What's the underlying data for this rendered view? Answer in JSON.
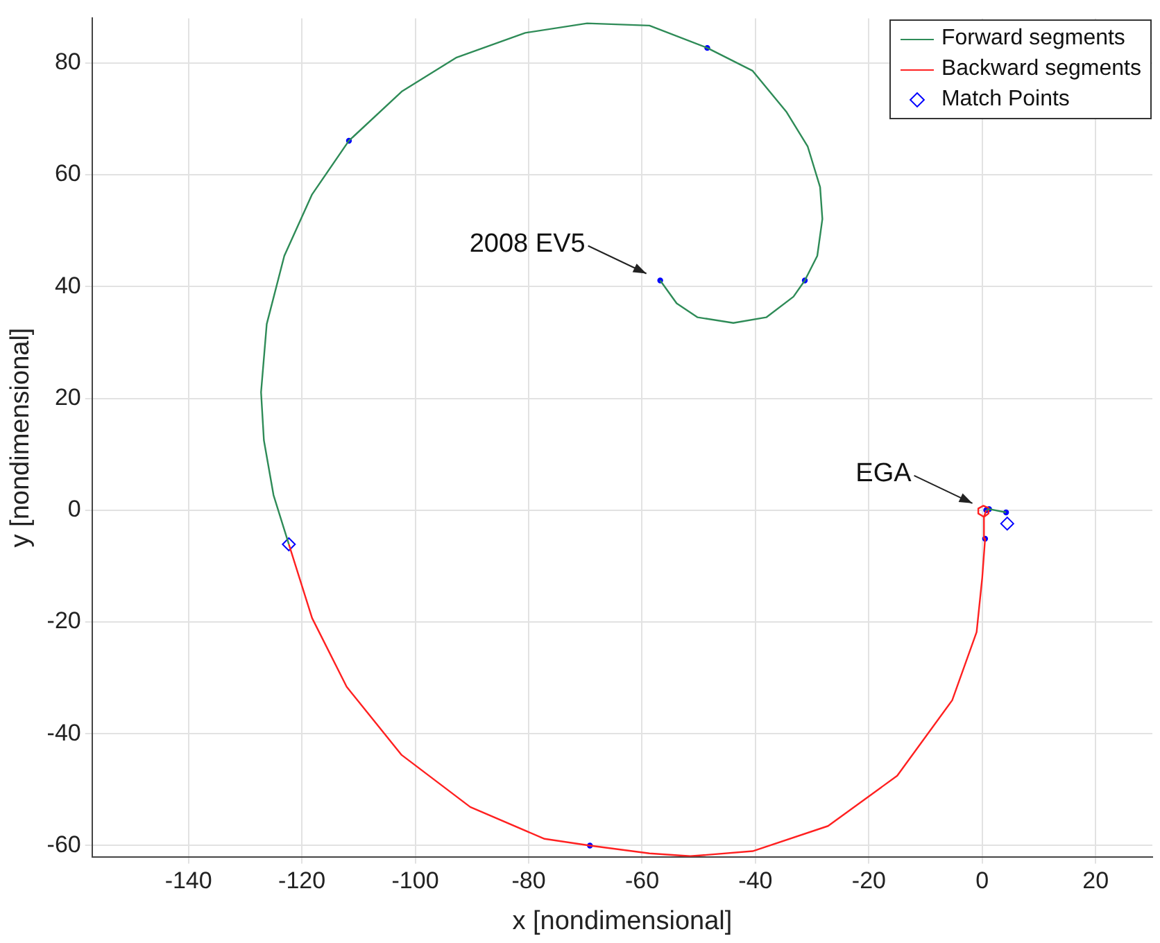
{
  "chart_data": {
    "type": "line",
    "xlabel": "x [nondimensional]",
    "ylabel": "y [nondimensional]",
    "xlim": [
      -157,
      30
    ],
    "ylim": [
      -62,
      88
    ],
    "xticks": [
      -140,
      -120,
      -100,
      -80,
      -60,
      -40,
      -20,
      0,
      20
    ],
    "yticks": [
      -60,
      -40,
      -20,
      0,
      20,
      40,
      60,
      80
    ],
    "grid": true,
    "legend": "top right",
    "series": [
      {
        "name": "Forward segments",
        "type": "line",
        "marker": "none",
        "line_style": "solid",
        "color": "#2e8b57",
        "x": [
          -56.8,
          -53.9,
          -50.2,
          -43.9,
          -38.1,
          -33.3,
          -31.3,
          -29.1,
          -28.2,
          -28.6,
          -30.8,
          -34.5,
          -40.5,
          -48.5,
          -58.7,
          -69.7,
          -80.6,
          -92.7,
          -102.4,
          -111.7,
          -118.2,
          -123.1,
          -126.2,
          -127.2,
          -126.7,
          -125.0,
          -122.3,
          null,
          0.7,
          1.2,
          4.2
        ],
        "values": [
          41.1,
          37.0,
          34.5,
          33.5,
          34.5,
          38.2,
          41.1,
          45.5,
          52.1,
          57.8,
          65.1,
          71.2,
          78.6,
          82.7,
          86.7,
          87.1,
          85.4,
          81.0,
          74.9,
          66.1,
          56.5,
          45.5,
          33.3,
          21.1,
          12.5,
          2.7,
          -6.1,
          null,
          0.0,
          0.2,
          -0.4
        ]
      },
      {
        "name": "Backward segments",
        "type": "line",
        "marker": "none",
        "line_style": "solid",
        "color": "#ff2020",
        "x": [
          -122.3,
          -118.2,
          -112.1,
          -102.4,
          -90.3,
          -77.2,
          -69.2,
          -58.7,
          -51.5,
          -40.5,
          -27.2,
          -15.0,
          -5.3,
          -1.0,
          0.0,
          0.5,
          0.3,
          1.1,
          1.1,
          0.2,
          -0.7,
          -0.7,
          0.3,
          0.7
        ],
        "values": [
          -6.1,
          -19.3,
          -31.6,
          -43.8,
          -53.1,
          -58.8,
          -60.0,
          -61.4,
          -61.9,
          -61.0,
          -56.5,
          -47.5,
          -34.0,
          -21.8,
          -12.0,
          -5.1,
          -1.2,
          -0.6,
          0.4,
          0.8,
          0.3,
          -0.6,
          -1.2,
          0.0
        ]
      },
      {
        "name": "Match Points",
        "type": "scatter",
        "marker": "diamond",
        "color": "#0000ff",
        "x": [
          -122.3,
          4.4
        ],
        "values": [
          -6.1,
          -2.4
        ]
      },
      {
        "type": "scatter",
        "marker": "circle",
        "color": "#0000ff",
        "x": [
          -56.8,
          -31.3,
          -48.5,
          -111.7,
          -69.2,
          0.5,
          0.7,
          1.2,
          4.2
        ],
        "values": [
          41.1,
          41.1,
          82.7,
          66.1,
          -60.0,
          -5.1,
          0.0,
          0.2,
          -0.4
        ]
      }
    ],
    "annotations": [
      {
        "text": "2008 EV5",
        "x": -56.8,
        "y": 41.1
      },
      {
        "text": "EGA",
        "x": 0.7,
        "y": 0.0
      }
    ]
  }
}
